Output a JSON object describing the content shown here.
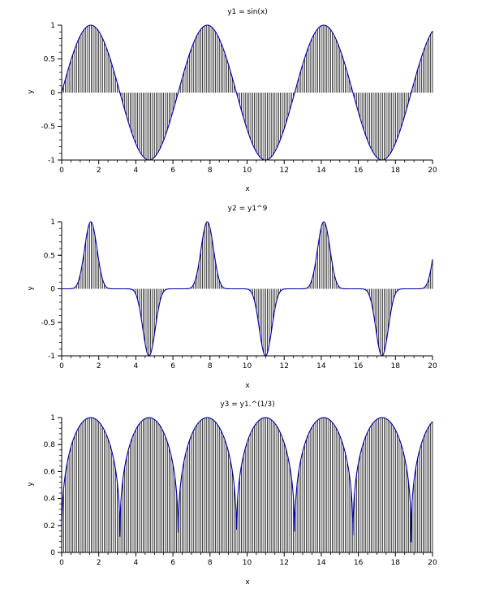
{
  "chart_data": [
    {
      "type": "line",
      "title": "y1 = sin(x)",
      "xlabel": "x",
      "ylabel": "y",
      "xlim": [
        0,
        20
      ],
      "ylim": [
        -1,
        1
      ],
      "xticks": [
        "0",
        "2",
        "4",
        "6",
        "8",
        "10",
        "12",
        "14",
        "16",
        "18",
        "20"
      ],
      "yticks": [
        "-1",
        "-0.5",
        "0",
        "0.5",
        "1"
      ],
      "x_range": [
        0,
        20
      ],
      "x_step": 0.1,
      "stem_baseline": 0,
      "series": [
        {
          "expression": "sin(x)",
          "color": "#0000aa",
          "stem_color": "#000000"
        }
      ]
    },
    {
      "type": "line",
      "title": "y2 = y1^9",
      "xlabel": "x",
      "ylabel": "y",
      "xlim": [
        0,
        20
      ],
      "ylim": [
        -1,
        1
      ],
      "xticks": [
        "0",
        "2",
        "4",
        "6",
        "8",
        "10",
        "12",
        "14",
        "16",
        "18",
        "20"
      ],
      "yticks": [
        "-1",
        "-0.5",
        "0",
        "0.5",
        "1"
      ],
      "x_range": [
        0,
        20
      ],
      "x_step": 0.1,
      "stem_baseline": 0,
      "series": [
        {
          "expression": "sin(x)^9",
          "color": "#0000aa",
          "stem_color": "#000000"
        }
      ]
    },
    {
      "type": "line",
      "title": "y3 = y1.^(1/3)",
      "xlabel": "x",
      "ylabel": "y",
      "xlim": [
        0,
        20
      ],
      "ylim": [
        0,
        1
      ],
      "xticks": [
        "0",
        "2",
        "4",
        "6",
        "8",
        "10",
        "12",
        "14",
        "16",
        "18",
        "20"
      ],
      "yticks": [
        "0",
        "0.2",
        "0.4",
        "0.6",
        "0.8",
        "1"
      ],
      "x_range": [
        0,
        20
      ],
      "x_step": 0.1,
      "stem_baseline": 0,
      "series": [
        {
          "expression": "|sin(x)^(1/3)|",
          "color": "#0000aa",
          "stem_color": "#000000"
        }
      ]
    }
  ]
}
